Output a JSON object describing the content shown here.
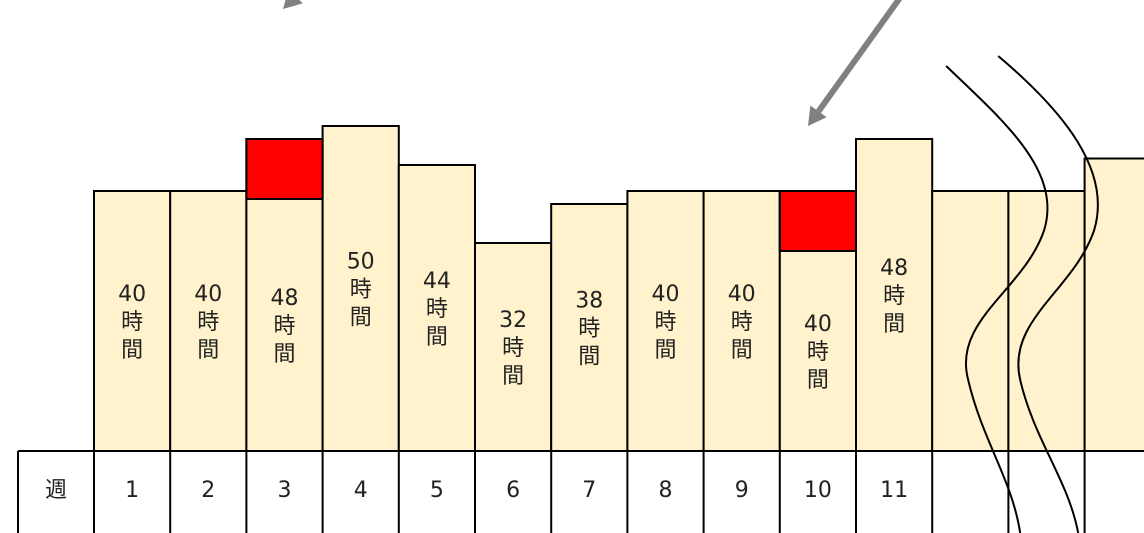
{
  "header_label": "週",
  "weeks": [
    {
      "week": "1",
      "hours": 40,
      "label_num": "40"
    },
    {
      "week": "2",
      "hours": 40,
      "label_num": "40"
    },
    {
      "week": "3",
      "hours": 48,
      "label_num": "48",
      "excess": true
    },
    {
      "week": "4",
      "hours": 50,
      "label_num": "50"
    },
    {
      "week": "5",
      "hours": 44,
      "label_num": "44"
    },
    {
      "week": "6",
      "hours": 32,
      "label_num": "32"
    },
    {
      "week": "7",
      "hours": 38,
      "label_num": "38"
    },
    {
      "week": "8",
      "hours": 40,
      "label_num": "40"
    },
    {
      "week": "9",
      "hours": 40,
      "label_num": "40"
    },
    {
      "week": "10",
      "hours": 40,
      "label_num": "40",
      "excess": true
    },
    {
      "week": "11",
      "hours": 48,
      "label_num": "48"
    },
    {
      "week": "",
      "hours": 40,
      "label_num": ""
    },
    {
      "week": "",
      "hours": 40,
      "label_num": ""
    },
    {
      "week": "",
      "hours": 45,
      "label_num": ""
    }
  ],
  "unit_chars": [
    "時",
    "間"
  ],
  "colors": {
    "bar_fill": "#fff2cc",
    "excess_fill": "#ff0000",
    "arrow": "#808080",
    "stroke": "#000000"
  }
}
